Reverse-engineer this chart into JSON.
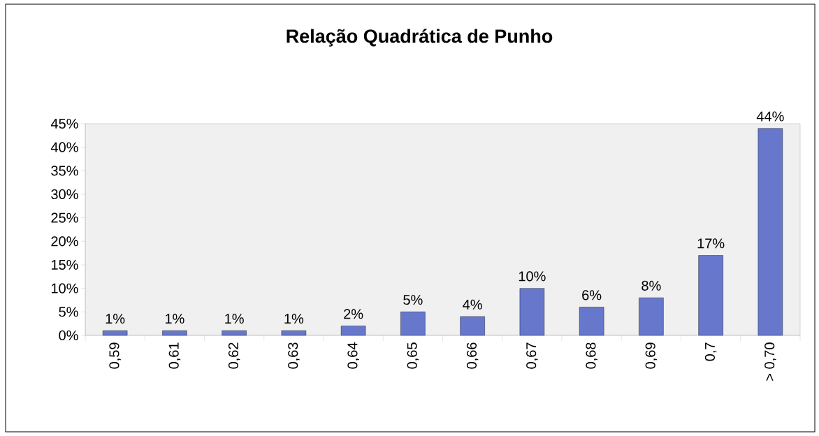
{
  "chart_data": {
    "type": "bar",
    "title": "Relação Quadrática de Punho",
    "categories": [
      "0,59",
      "0,61",
      "0,62",
      "0,63",
      "0,64",
      "0,65",
      "0,66",
      "0,67",
      "0,68",
      "0,69",
      "0,7",
      "> 0,70"
    ],
    "values": [
      1,
      1,
      1,
      1,
      2,
      5,
      4,
      10,
      6,
      8,
      17,
      44
    ],
    "value_labels": [
      "1%",
      "1%",
      "1%",
      "1%",
      "2%",
      "5%",
      "4%",
      "10%",
      "6%",
      "8%",
      "17%",
      "44%"
    ],
    "color": "#6677cc",
    "ylim": [
      0,
      45
    ],
    "yticks": [
      {
        "value": 0,
        "label": "0%"
      },
      {
        "value": 5,
        "label": "5%"
      },
      {
        "value": 10,
        "label": "10%"
      },
      {
        "value": 15,
        "label": "15%"
      },
      {
        "value": 20,
        "label": "20%"
      },
      {
        "value": 25,
        "label": "25%"
      },
      {
        "value": 30,
        "label": "30%"
      },
      {
        "value": 35,
        "label": "35%"
      },
      {
        "value": 40,
        "label": "40%"
      },
      {
        "value": 45,
        "label": "45%"
      }
    ]
  }
}
